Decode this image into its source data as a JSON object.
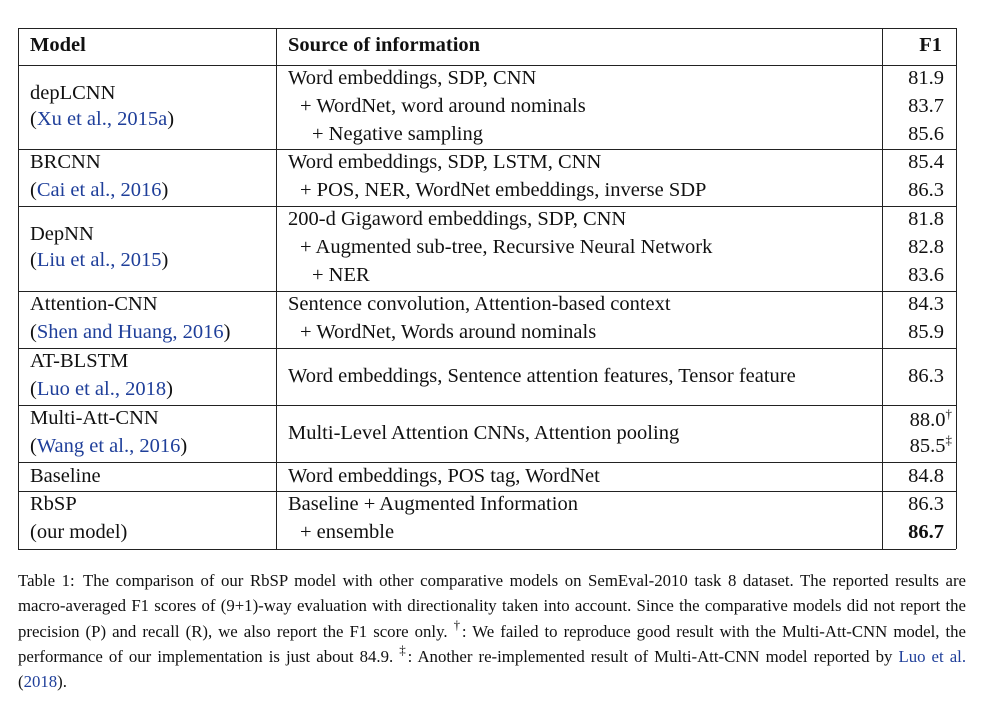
{
  "table": {
    "headers": {
      "model": "Model",
      "source": "Source of information",
      "f1": "F1"
    },
    "rows": [
      {
        "model": "depLCNN",
        "citation": "Xu et al., 2015a",
        "sources": [
          "Word embeddings, SDP, CNN",
          "+ WordNet, word around nominals",
          "+ Negative sampling"
        ],
        "scores": [
          "81.9",
          "83.7",
          "85.6"
        ]
      },
      {
        "model": "BRCNN",
        "citation": "Cai et al., 2016",
        "sources": [
          "Word embeddings, SDP, LSTM, CNN",
          "+ POS, NER, WordNet embeddings, inverse SDP"
        ],
        "scores": [
          "85.4",
          "86.3"
        ]
      },
      {
        "model": "DepNN",
        "citation": "Liu et al., 2015",
        "sources": [
          "200-d Gigaword embeddings, SDP, CNN",
          "+ Augmented sub-tree, Recursive Neural Network",
          "+ NER"
        ],
        "scores": [
          "81.8",
          "82.8",
          "83.6"
        ]
      },
      {
        "model": "Attention-CNN",
        "citation": "Shen and Huang, 2016",
        "sources": [
          "Sentence convolution, Attention-based context",
          "+ WordNet, Words around nominals"
        ],
        "scores": [
          "84.3",
          "85.9"
        ]
      },
      {
        "model": "AT-BLSTM",
        "citation": "Luo et al., 2018",
        "sources": [
          "Word embeddings, Sentence attention features, Tensor feature"
        ],
        "scores": [
          "86.3"
        ]
      },
      {
        "model": "Multi-Att-CNN",
        "citation": "Wang et al., 2016",
        "sources": [
          "Multi-Level Attention CNNs, Attention pooling"
        ],
        "scores": [
          "88.0",
          "85.5"
        ],
        "score_marks": [
          "†",
          "‡"
        ]
      },
      {
        "model": "Baseline",
        "sources": [
          "Word embeddings, POS tag, WordNet"
        ],
        "scores": [
          "84.8"
        ]
      },
      {
        "model": "RbSP",
        "model_note": "(our model)",
        "sources": [
          "Baseline + Augmented Information",
          "+ ensemble"
        ],
        "scores": [
          "86.3",
          "86.7"
        ],
        "best": "86.7"
      }
    ]
  },
  "caption": {
    "label": "Table 1:",
    "text_a": "The comparison of our RbSP model with other comparative models on SemEval-2010 task 8 dataset. The reported results are macro-averaged F1 scores of (9+1)-way evaluation with directionality taken into account. Since the comparative models did not report the precision (P) and recall (R), we also report the F1 score only.",
    "dagger": "†",
    "text_b": ": We failed to reproduce good result with the Multi-Att-CNN model, the performance of our implementation is just about 84.9.",
    "ddagger": "‡",
    "text_c": ": Another re-implemented result of Multi-Att-CNN model reported by",
    "cite_name": "Luo et al.",
    "cite_year": "2018",
    "end": "."
  }
}
